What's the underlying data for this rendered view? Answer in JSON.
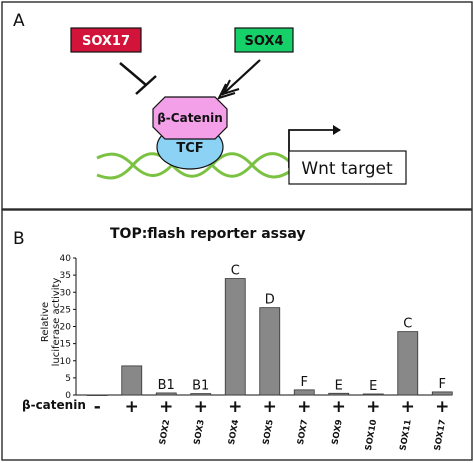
{
  "panel_a": {
    "letter": "A",
    "sox17_label": "SOX17",
    "sox4_label": "SOX4",
    "beta_catenin_label": "β-Catenin",
    "tcf_label": "TCF",
    "wnt_target_label": "Wnt target",
    "colors": {
      "sox17_fill": "#d2143a",
      "sox4_fill": "#16d06a",
      "beta_catenin_fill": "#f4a0e8",
      "tcf_fill": "#8cd2f4",
      "dna_strand": "#7cc242"
    }
  },
  "panel_b": {
    "letter": "B",
    "row_label": "β-catenin"
  },
  "chart_data": {
    "type": "bar",
    "title": "TOP:flash reporter assay",
    "ylabel": "Relative luciferase activity",
    "ylabel_lines": [
      "Relative",
      "luciferase activity"
    ],
    "ylim": [
      0,
      40
    ],
    "yticks": [
      0,
      5,
      10,
      15,
      20,
      25,
      30,
      35,
      40
    ],
    "grid": false,
    "bar_color": "#888888",
    "categories": [
      "",
      "",
      "SOX2",
      "SOX3",
      "SOX4",
      "SOX5",
      "SOX7",
      "SOX9",
      "SOX10",
      "SOX11",
      "SOX17"
    ],
    "beta_catenin": [
      "-",
      "+",
      "+",
      "+",
      "+",
      "+",
      "+",
      "+",
      "+",
      "+",
      "+"
    ],
    "values": [
      0,
      8.5,
      0.6,
      0.4,
      34,
      25.5,
      1.5,
      0.5,
      0.3,
      18.5,
      0.9
    ],
    "bar_labels": [
      "",
      "",
      "B1",
      "B1",
      "C",
      "D",
      "F",
      "E",
      "E",
      "C",
      "F"
    ]
  }
}
